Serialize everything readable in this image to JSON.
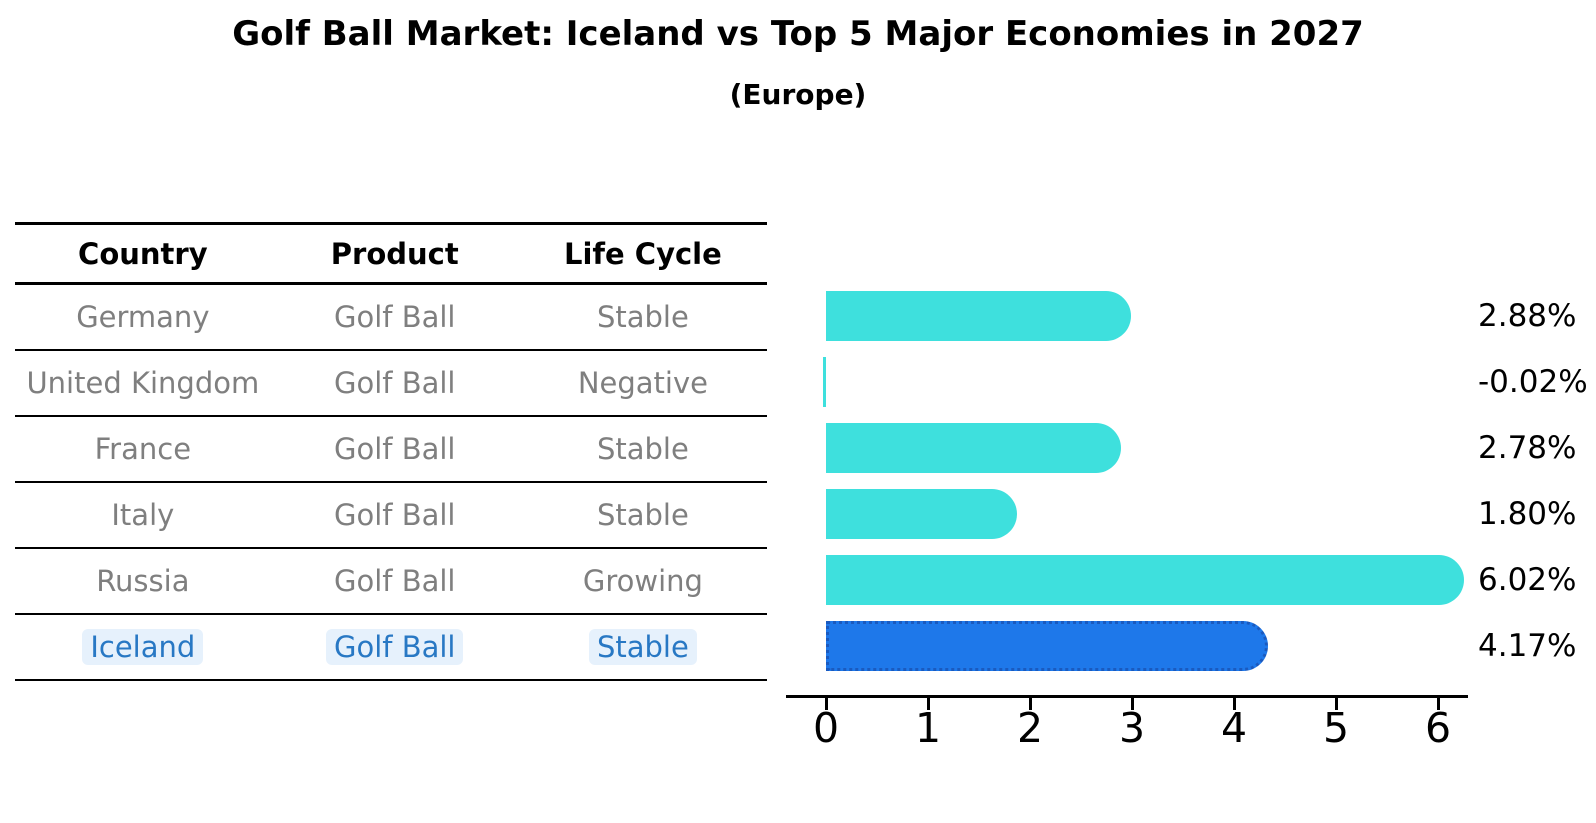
{
  "chart_data": {
    "type": "bar",
    "orientation": "horizontal",
    "title": "Golf Ball Market: Iceland vs Top 5 Major Economies in 2027",
    "subtitle": "(Europe)",
    "categories": [
      "Germany",
      "United Kingdom",
      "France",
      "Italy",
      "Russia",
      "Iceland"
    ],
    "values": [
      2.88,
      -0.02,
      2.78,
      1.8,
      6.02,
      4.17
    ],
    "value_labels": [
      "2.88%",
      "-0.02%",
      "2.78%",
      "1.80%",
      "6.02%",
      "4.17%"
    ],
    "value_unit": "percent",
    "x_ticks": [
      "0",
      "1",
      "2",
      "3",
      "4",
      "5",
      "6"
    ],
    "xlim": [
      0,
      6.3
    ],
    "grid": false,
    "legend": false,
    "highlight_category": "Iceland",
    "highlight_index": 5,
    "bar_color": "#3EE0DD",
    "highlight_bar_color": "#1E78EA",
    "highlight_border_color": "#1A5ABF",
    "axis_color": "#000000",
    "label_color": "#000000"
  },
  "table": {
    "headers": [
      "Country",
      "Product",
      "Life Cycle"
    ],
    "rows": [
      {
        "country": "Germany",
        "product": "Golf Ball",
        "life_cycle": "Stable",
        "highlight": false
      },
      {
        "country": "United Kingdom",
        "product": "Golf Ball",
        "life_cycle": "Negative",
        "highlight": false
      },
      {
        "country": "France",
        "product": "Golf Ball",
        "life_cycle": "Stable",
        "highlight": false
      },
      {
        "country": "Italy",
        "product": "Golf Ball",
        "life_cycle": "Stable",
        "highlight": false
      },
      {
        "country": "Russia",
        "product": "Golf Ball",
        "life_cycle": "Growing",
        "highlight": false
      },
      {
        "country": "Iceland",
        "product": "Golf Ball",
        "life_cycle": "Stable",
        "highlight": true
      }
    ],
    "body_text_color": "#7F7F7F",
    "header_text_color": "#000000",
    "highlight_text_color": "#2878C4"
  }
}
